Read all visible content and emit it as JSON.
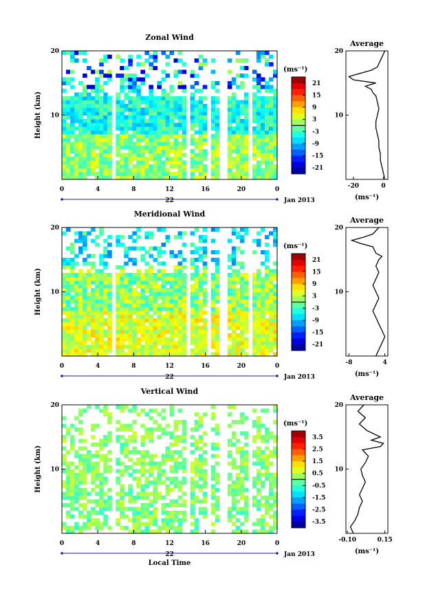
{
  "chart_data": [
    {
      "type": "heatmap",
      "title": "Zonal Wind",
      "ylabel": "Height (km)",
      "yticks": [
        "10",
        "20"
      ],
      "ylim": [
        0,
        20
      ],
      "xticks": [
        "0",
        "4",
        "8",
        "12",
        "16",
        "20",
        "0"
      ],
      "xlim": [
        0,
        24
      ],
      "day_label": "22",
      "date_label": "Jan 2013",
      "colorbar": {
        "unit": "(ms⁻¹)",
        "ticks": [
          "21",
          "15",
          "9",
          "3",
          "-3",
          "-9",
          "-15",
          "-21"
        ],
        "range": [
          -24,
          24
        ]
      },
      "profile": {
        "title": "Average",
        "xticks": [
          "-20",
          "0"
        ],
        "xlim": [
          -25,
          3
        ],
        "xlabel": "(ms⁻¹)",
        "yticks": [
          "10",
          "20"
        ],
        "heights": [
          0,
          1,
          2,
          3,
          4,
          5,
          6,
          7,
          8,
          9,
          10,
          11,
          12,
          13,
          13.5,
          14,
          14.5,
          15,
          15.5,
          16,
          17,
          17.5,
          18,
          19,
          20
        ],
        "values": [
          1,
          0,
          -1,
          -2,
          -2,
          -3,
          -3,
          -4,
          -5,
          -5,
          -4,
          -3,
          -4,
          -5,
          -7,
          -8,
          -12,
          -5,
          -20,
          -23,
          -8,
          -4,
          -3,
          -1,
          1
        ]
      }
    },
    {
      "type": "heatmap",
      "title": "Meridional Wind",
      "ylabel": "Height (km)",
      "yticks": [
        "10",
        "20"
      ],
      "ylim": [
        0,
        20
      ],
      "xticks": [
        "0",
        "4",
        "8",
        "12",
        "16",
        "20",
        "0"
      ],
      "xlim": [
        0,
        24
      ],
      "day_label": "22",
      "date_label": "Jan 2013",
      "colorbar": {
        "unit": "(ms⁻¹)",
        "ticks": [
          "21",
          "15",
          "9",
          "3",
          "-3",
          "-9",
          "-15",
          "-21"
        ],
        "range": [
          -24,
          24
        ]
      },
      "profile": {
        "title": "Average",
        "xticks": [
          "-8",
          "4"
        ],
        "xlim": [
          -9,
          5
        ],
        "xlabel": "(ms⁻¹)",
        "yticks": [
          "10",
          "20"
        ],
        "heights": [
          0,
          1,
          2,
          3,
          4,
          5,
          6,
          7,
          8,
          9,
          10,
          11,
          12,
          13,
          14,
          15,
          15.5,
          16,
          17,
          17.5,
          18,
          18.5,
          19,
          20
        ],
        "values": [
          1,
          2,
          3,
          4,
          3,
          2,
          1,
          0,
          1,
          2,
          1,
          0,
          1,
          2,
          1,
          2,
          3,
          1,
          0,
          -4,
          -7,
          -3,
          0,
          2
        ]
      }
    },
    {
      "type": "heatmap",
      "title": "Vertical Wind",
      "ylabel": "Height (km)",
      "yticks": [
        "10",
        "20"
      ],
      "ylim": [
        0,
        20
      ],
      "xticks": [
        "0",
        "4",
        "8",
        "12",
        "16",
        "20",
        "0"
      ],
      "xlim": [
        0,
        24
      ],
      "day_label": "22",
      "date_label": "Jan 2013",
      "xlabel": "Local Time",
      "colorbar": {
        "unit": "(ms⁻¹)",
        "ticks": [
          "3.5",
          "2.5",
          "1.5",
          "0.5",
          "-0.5",
          "-1.5",
          "-2.5",
          "-3.5"
        ],
        "range": [
          -4,
          4
        ]
      },
      "profile": {
        "title": "Average",
        "xticks": [
          "-0.10",
          "0.15"
        ],
        "xlim": [
          -0.11,
          0.17
        ],
        "xlabel": "(ms⁻¹)",
        "yticks": [
          "10",
          "20"
        ],
        "heights": [
          0,
          1,
          2,
          3,
          4,
          5,
          6,
          7,
          8,
          9,
          10,
          11,
          12,
          13,
          13.5,
          14,
          14.5,
          15,
          16,
          17,
          18,
          19,
          20
        ],
        "values": [
          -0.06,
          -0.08,
          -0.05,
          -0.03,
          -0.02,
          0.0,
          -0.02,
          0.0,
          0.02,
          0.0,
          -0.01,
          0.02,
          0.04,
          0.0,
          0.12,
          0.14,
          0.06,
          0.12,
          0.03,
          -0.02,
          0.02,
          -0.03,
          0.01
        ]
      }
    }
  ]
}
